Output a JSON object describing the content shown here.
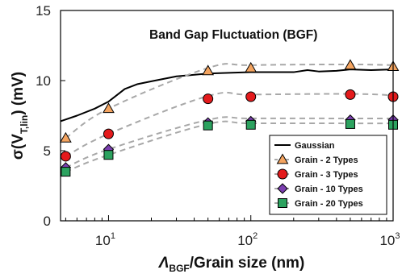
{
  "chart_data": {
    "type": "line",
    "title": "Band Gap Fluctuation (BGF)",
    "xlabel": {
      "prefix": "Λ",
      "sub": "BGF",
      "suffix": "/Grain size (nm)"
    },
    "ylabel": {
      "prefix": "σ(V",
      "sub": "T,lin",
      "suffix": ") (mV)"
    },
    "xscale": "log",
    "xlim": [
      4.6,
      1000
    ],
    "ylim": [
      0,
      15
    ],
    "yticks": [
      0,
      5,
      10,
      15
    ],
    "xticks": [
      {
        "value": 10,
        "base": "10",
        "exp": "1"
      },
      {
        "value": 100,
        "base": "10",
        "exp": "2"
      },
      {
        "value": 1000,
        "base": "10",
        "exp": "3"
      }
    ],
    "legend_position": "bottom-right",
    "series": [
      {
        "name": "Gaussian",
        "style": "solid",
        "color": "#000000",
        "marker": "none",
        "x": [
          4.6,
          6,
          8,
          10,
          13,
          16,
          20,
          30,
          50,
          70,
          100,
          200,
          250,
          300,
          400,
          500,
          700,
          1000
        ],
        "y": [
          7.1,
          7.5,
          8.0,
          8.5,
          9.4,
          9.75,
          9.95,
          10.3,
          10.5,
          10.55,
          10.6,
          10.6,
          10.75,
          10.65,
          10.7,
          10.8,
          10.75,
          10.8
        ]
      },
      {
        "name": "Grain - 2 Types",
        "style": "dashed",
        "color": "#f4a460",
        "marker": "triangle",
        "x": [
          5,
          10,
          50,
          100,
          500,
          1000
        ],
        "y": [
          5.9,
          8.0,
          10.7,
          10.9,
          11.1,
          11.0
        ],
        "curve_y": [
          5.9,
          8.0,
          10.9,
          11.1,
          11.15,
          11.1
        ]
      },
      {
        "name": "Grain - 3 Types",
        "style": "dashed",
        "color": "#e41a1c",
        "marker": "circle",
        "x": [
          5,
          10,
          50,
          100,
          500,
          1000
        ],
        "y": [
          4.6,
          6.2,
          8.7,
          8.85,
          9.0,
          8.85
        ],
        "curve_y": [
          4.6,
          6.2,
          8.9,
          9.0,
          9.05,
          8.95
        ]
      },
      {
        "name": "Grain - 10 Types",
        "style": "dashed",
        "color": "#7b3fb0",
        "marker": "diamond",
        "x": [
          5,
          10,
          50,
          100,
          500,
          1000
        ],
        "y": [
          3.8,
          5.1,
          7.0,
          7.1,
          7.2,
          7.2
        ],
        "curve_y": [
          3.8,
          5.1,
          7.2,
          7.3,
          7.3,
          7.3
        ]
      },
      {
        "name": "Grain - 20 Types",
        "style": "dashed",
        "color": "#2ca25f",
        "marker": "square",
        "x": [
          5,
          10,
          50,
          100,
          500,
          1000
        ],
        "y": [
          3.5,
          4.7,
          6.8,
          6.85,
          6.9,
          6.85
        ],
        "curve_y": [
          3.5,
          4.7,
          6.9,
          6.95,
          6.95,
          6.95
        ]
      }
    ]
  }
}
